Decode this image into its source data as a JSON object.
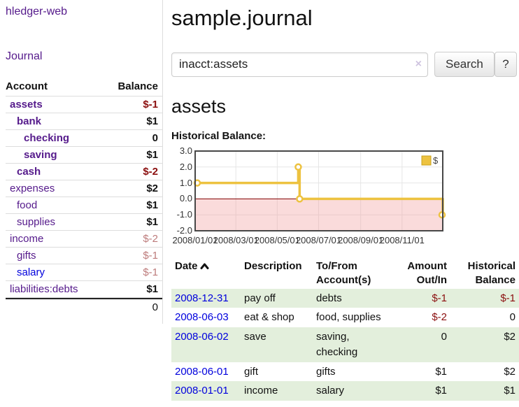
{
  "app": {
    "brand": "hledger-web",
    "nav_journal": "Journal"
  },
  "header": {
    "title": "sample.journal"
  },
  "search": {
    "value": "inacct:assets",
    "clear_icon": "×",
    "button_label": "Search",
    "help_label": "?"
  },
  "sidebar": {
    "col_account": "Account",
    "col_balance": "Balance",
    "accounts": [
      {
        "name": "assets",
        "depth": 0,
        "bold": true,
        "balance": "$-1",
        "neg": true
      },
      {
        "name": "bank",
        "depth": 1,
        "bold": true,
        "balance": "$1"
      },
      {
        "name": "checking",
        "depth": 2,
        "bold": true,
        "balance": "0"
      },
      {
        "name": "saving",
        "depth": 2,
        "bold": true,
        "balance": "$1"
      },
      {
        "name": "cash",
        "depth": 1,
        "bold": true,
        "balance": "$-2",
        "neg": true
      },
      {
        "name": "expenses",
        "depth": 0,
        "bold": false,
        "balance": "$2"
      },
      {
        "name": "food",
        "depth": 1,
        "bold": false,
        "balance": "$1"
      },
      {
        "name": "supplies",
        "depth": 1,
        "bold": false,
        "balance": "$1"
      },
      {
        "name": "income",
        "depth": 0,
        "bold": false,
        "balance": "$-2",
        "dimneg": true
      },
      {
        "name": "gifts",
        "depth": 1,
        "bold": false,
        "balance": "$-1",
        "dimneg": true
      },
      {
        "name": "salary",
        "depth": 1,
        "bold": false,
        "balance": "$-1",
        "dimneg": true,
        "blue": true
      },
      {
        "name": "liabilities:debts",
        "depth": 0,
        "bold": false,
        "balance": "$1"
      }
    ],
    "total": "0"
  },
  "register": {
    "heading": "assets",
    "chart_label": "Historical Balance:",
    "table": {
      "headers": [
        "Date",
        "Description",
        "To/From Account(s)",
        "Amount Out/In",
        "Historical Balance"
      ],
      "rows": [
        {
          "date": "2008-12-31",
          "desc": "pay off",
          "accts": "debts",
          "amount": "$-1",
          "amount_neg": true,
          "balance": "$-1",
          "balance_neg": true,
          "alt": true
        },
        {
          "date": "2008-06-03",
          "desc": "eat & shop",
          "accts": "food, supplies",
          "amount": "$-2",
          "amount_neg": true,
          "balance": "0",
          "balance_neg": false,
          "alt": false
        },
        {
          "date": "2008-06-02",
          "desc": "save",
          "accts": "saving, checking",
          "amount": "0",
          "amount_neg": false,
          "balance": "$2",
          "balance_neg": false,
          "alt": true
        },
        {
          "date": "2008-06-01",
          "desc": "gift",
          "accts": "gifts",
          "amount": "$1",
          "amount_neg": false,
          "balance": "$2",
          "balance_neg": false,
          "alt": false
        },
        {
          "date": "2008-01-01",
          "desc": "income",
          "accts": "salary",
          "amount": "$1",
          "amount_neg": false,
          "balance": "$1",
          "balance_neg": false,
          "alt": true
        }
      ]
    }
  },
  "chart_data": {
    "type": "line",
    "title": "Historical Balance:",
    "step": true,
    "series": [
      {
        "name": "$",
        "color": "#edc240",
        "points": [
          [
            "2008-01-01",
            1
          ],
          [
            "2008-06-01",
            2
          ],
          [
            "2008-06-03",
            0
          ],
          [
            "2008-12-31",
            -1
          ]
        ]
      }
    ],
    "x": {
      "min": "2008-01-01",
      "max": "2008-12-31",
      "tick_dates": [
        "2008-01-01",
        "2008-03-01",
        "2008-05-01",
        "2008-07-01",
        "2008-09-01",
        "2008-11-01"
      ],
      "ticks": [
        "2008/01/01",
        "2008/03/01",
        "2008/05/01",
        "2008/07/01",
        "2008/09/01",
        "2008/11/01"
      ]
    },
    "y": {
      "min": -2,
      "max": 3,
      "ticks": [
        3,
        2,
        1,
        0,
        -1,
        -2
      ],
      "labels": [
        "3.0",
        "2.0",
        "1.0",
        "0.0",
        "-1.0",
        "-2.0"
      ]
    },
    "legend": {
      "label": "$",
      "position": "top-right"
    },
    "grid": true,
    "grid_color": "#e6e6e6",
    "zero_line_color": "#800000",
    "negative_fill": "#f2a0a0",
    "border_color": "#474747"
  },
  "colors": {
    "link_purple": "#551a8b",
    "link_blue": "#0000dd",
    "negative": "#8b0f0f",
    "negative_dim": "#bd7b7b",
    "row_green": "#e3efdc",
    "chart_gold": "#edc240",
    "chart_zero_line": "#800000"
  }
}
